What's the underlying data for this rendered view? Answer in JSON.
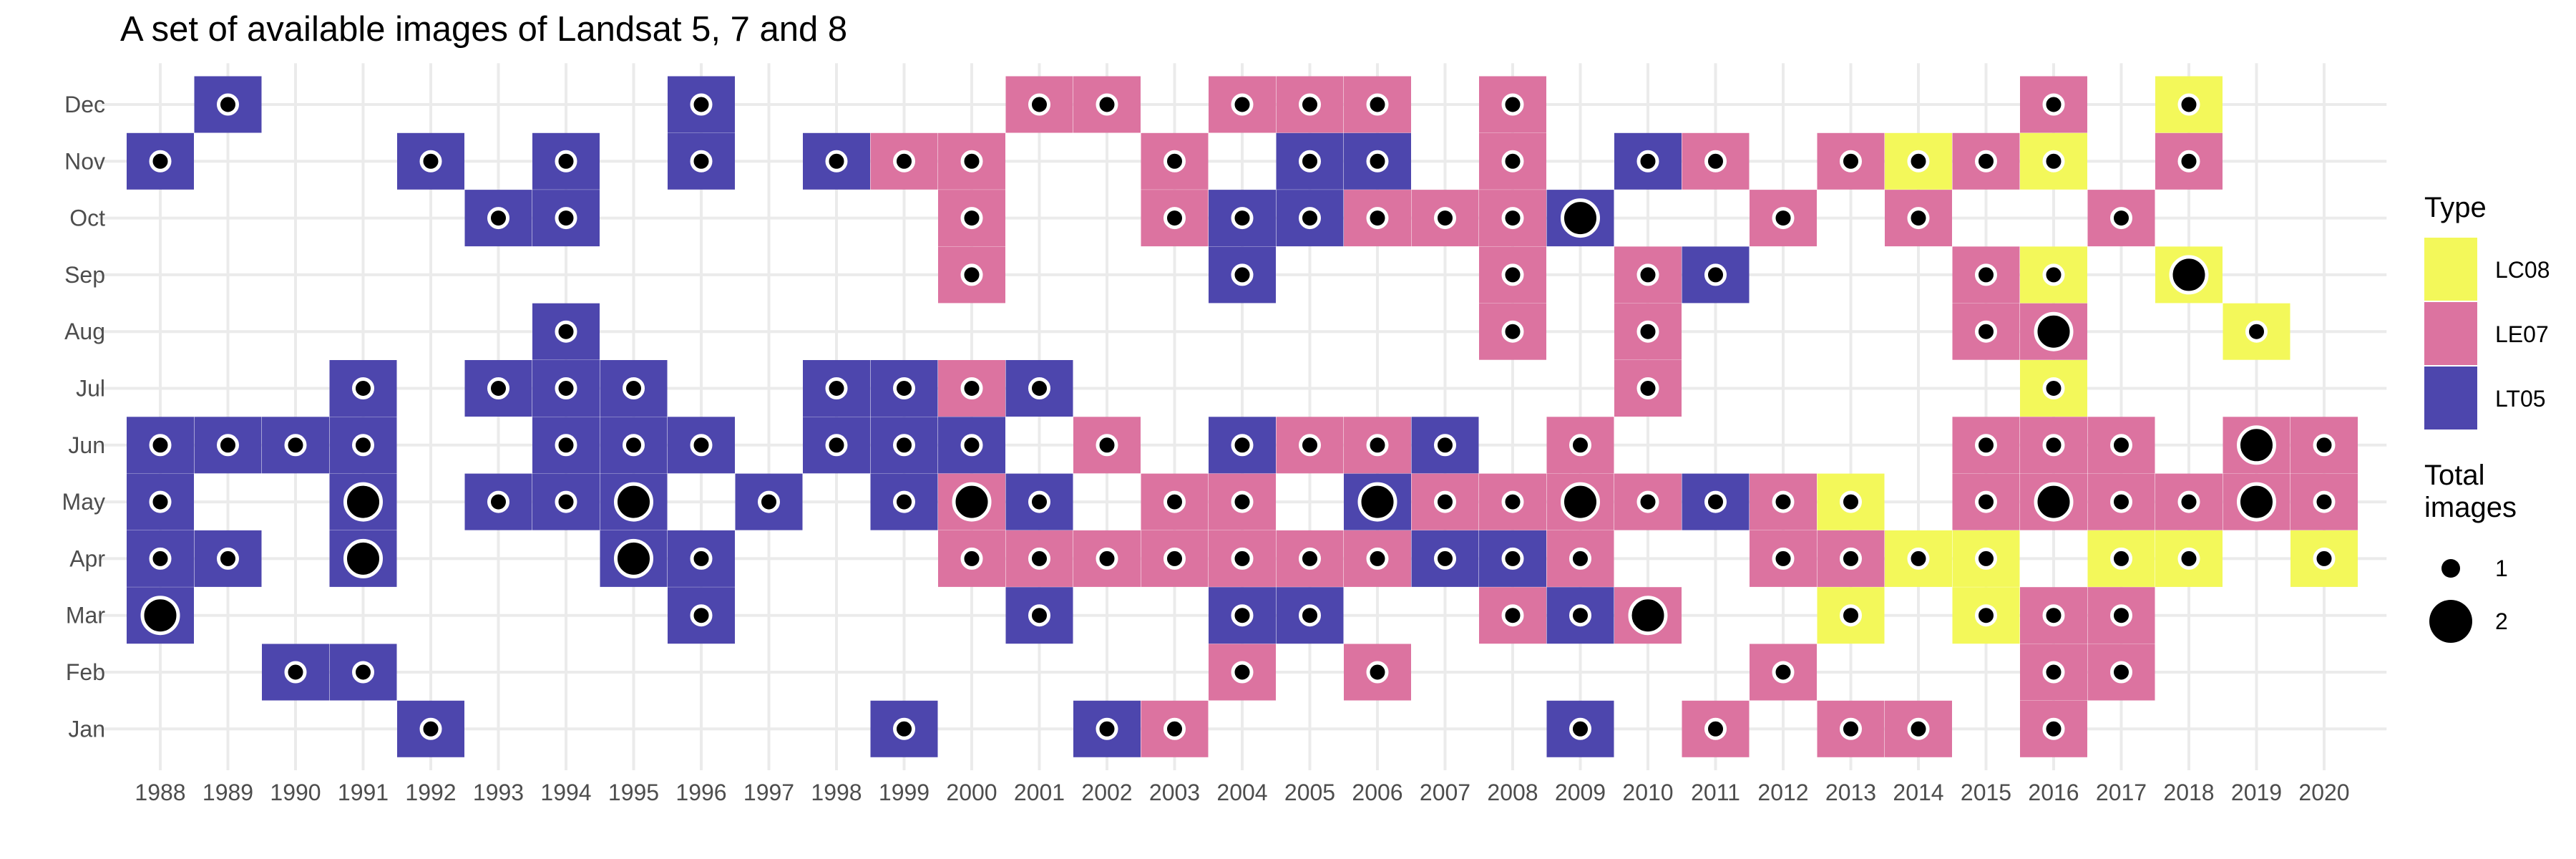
{
  "chart_data": {
    "type": "heatmap",
    "title": "A set of available images of Landsat 5, 7 and 8",
    "xlabel": "",
    "ylabel": "",
    "x_categories": [
      "1988",
      "1989",
      "1990",
      "1991",
      "1992",
      "1993",
      "1994",
      "1995",
      "1996",
      "1997",
      "1998",
      "1999",
      "2000",
      "2001",
      "2002",
      "2003",
      "2004",
      "2005",
      "2006",
      "2007",
      "2008",
      "2009",
      "2010",
      "2011",
      "2012",
      "2013",
      "2014",
      "2015",
      "2016",
      "2017",
      "2018",
      "2019",
      "2020"
    ],
    "y_categories": [
      "Jan",
      "Feb",
      "Mar",
      "Apr",
      "May",
      "Jun",
      "Jul",
      "Aug",
      "Sep",
      "Oct",
      "Nov",
      "Dec"
    ],
    "grid": true,
    "legend_placement": "right",
    "legend": {
      "fill_title": "Type",
      "fill_entries": [
        {
          "name": "LC08",
          "color": "#f3f85a"
        },
        {
          "name": "LE07",
          "color": "#dc73a0"
        },
        {
          "name": "LT05",
          "color": "#4d46ad"
        }
      ],
      "size_title_line1": "Total",
      "size_title_line2": "images",
      "size_entries": [
        {
          "label": "1",
          "value": 1
        },
        {
          "label": "2",
          "value": 2
        }
      ]
    },
    "colors": {
      "LC08": "#f3f85a",
      "LE07": "#dc73a0",
      "LT05": "#4d46ad"
    },
    "cells": [
      {
        "year": "1988",
        "month": "Nov",
        "type": "LT05",
        "total": 1
      },
      {
        "year": "1988",
        "month": "Jun",
        "type": "LT05",
        "total": 1
      },
      {
        "year": "1988",
        "month": "May",
        "type": "LT05",
        "total": 1
      },
      {
        "year": "1988",
        "month": "Apr",
        "type": "LT05",
        "total": 1
      },
      {
        "year": "1988",
        "month": "Mar",
        "type": "LT05",
        "total": 2
      },
      {
        "year": "1989",
        "month": "Dec",
        "type": "LT05",
        "total": 1
      },
      {
        "year": "1989",
        "month": "Jun",
        "type": "LT05",
        "total": 1
      },
      {
        "year": "1989",
        "month": "Apr",
        "type": "LT05",
        "total": 1
      },
      {
        "year": "1990",
        "month": "Jun",
        "type": "LT05",
        "total": 1
      },
      {
        "year": "1990",
        "month": "Feb",
        "type": "LT05",
        "total": 1
      },
      {
        "year": "1991",
        "month": "Jul",
        "type": "LT05",
        "total": 1
      },
      {
        "year": "1991",
        "month": "Jun",
        "type": "LT05",
        "total": 1
      },
      {
        "year": "1991",
        "month": "May",
        "type": "LT05",
        "total": 2
      },
      {
        "year": "1991",
        "month": "Apr",
        "type": "LT05",
        "total": 2
      },
      {
        "year": "1991",
        "month": "Feb",
        "type": "LT05",
        "total": 1
      },
      {
        "year": "1992",
        "month": "Nov",
        "type": "LT05",
        "total": 1
      },
      {
        "year": "1992",
        "month": "Jan",
        "type": "LT05",
        "total": 1
      },
      {
        "year": "1993",
        "month": "Oct",
        "type": "LT05",
        "total": 1
      },
      {
        "year": "1993",
        "month": "Jul",
        "type": "LT05",
        "total": 1
      },
      {
        "year": "1993",
        "month": "May",
        "type": "LT05",
        "total": 1
      },
      {
        "year": "1994",
        "month": "Nov",
        "type": "LT05",
        "total": 1
      },
      {
        "year": "1994",
        "month": "Oct",
        "type": "LT05",
        "total": 1
      },
      {
        "year": "1994",
        "month": "Aug",
        "type": "LT05",
        "total": 1
      },
      {
        "year": "1994",
        "month": "Jul",
        "type": "LT05",
        "total": 1
      },
      {
        "year": "1994",
        "month": "Jun",
        "type": "LT05",
        "total": 1
      },
      {
        "year": "1994",
        "month": "May",
        "type": "LT05",
        "total": 1
      },
      {
        "year": "1995",
        "month": "Jul",
        "type": "LT05",
        "total": 1
      },
      {
        "year": "1995",
        "month": "Jun",
        "type": "LT05",
        "total": 1
      },
      {
        "year": "1995",
        "month": "May",
        "type": "LT05",
        "total": 2
      },
      {
        "year": "1995",
        "month": "Apr",
        "type": "LT05",
        "total": 2
      },
      {
        "year": "1996",
        "month": "Dec",
        "type": "LT05",
        "total": 1
      },
      {
        "year": "1996",
        "month": "Nov",
        "type": "LT05",
        "total": 1
      },
      {
        "year": "1996",
        "month": "Jun",
        "type": "LT05",
        "total": 1
      },
      {
        "year": "1996",
        "month": "Apr",
        "type": "LT05",
        "total": 1
      },
      {
        "year": "1996",
        "month": "Mar",
        "type": "LT05",
        "total": 1
      },
      {
        "year": "1997",
        "month": "May",
        "type": "LT05",
        "total": 1
      },
      {
        "year": "1998",
        "month": "Nov",
        "type": "LT05",
        "total": 1
      },
      {
        "year": "1998",
        "month": "Jul",
        "type": "LT05",
        "total": 1
      },
      {
        "year": "1998",
        "month": "Jun",
        "type": "LT05",
        "total": 1
      },
      {
        "year": "1999",
        "month": "Nov",
        "type": "LE07",
        "total": 1
      },
      {
        "year": "1999",
        "month": "Jul",
        "type": "LT05",
        "total": 1
      },
      {
        "year": "1999",
        "month": "Jun",
        "type": "LT05",
        "total": 1
      },
      {
        "year": "1999",
        "month": "May",
        "type": "LT05",
        "total": 1
      },
      {
        "year": "1999",
        "month": "Jan",
        "type": "LT05",
        "total": 1
      },
      {
        "year": "2000",
        "month": "Nov",
        "type": "LE07",
        "total": 1
      },
      {
        "year": "2000",
        "month": "Oct",
        "type": "LE07",
        "total": 1
      },
      {
        "year": "2000",
        "month": "Sep",
        "type": "LE07",
        "total": 1
      },
      {
        "year": "2000",
        "month": "Jul",
        "type": "LE07",
        "total": 1
      },
      {
        "year": "2000",
        "month": "Jun",
        "type": "LT05",
        "total": 1
      },
      {
        "year": "2000",
        "month": "May",
        "type": "LE07",
        "total": 2
      },
      {
        "year": "2000",
        "month": "Apr",
        "type": "LE07",
        "total": 1
      },
      {
        "year": "2001",
        "month": "Dec",
        "type": "LE07",
        "total": 1
      },
      {
        "year": "2001",
        "month": "Jul",
        "type": "LT05",
        "total": 1
      },
      {
        "year": "2001",
        "month": "May",
        "type": "LT05",
        "total": 1
      },
      {
        "year": "2001",
        "month": "Apr",
        "type": "LE07",
        "total": 1
      },
      {
        "year": "2001",
        "month": "Mar",
        "type": "LT05",
        "total": 1
      },
      {
        "year": "2002",
        "month": "Dec",
        "type": "LE07",
        "total": 1
      },
      {
        "year": "2002",
        "month": "Jun",
        "type": "LE07",
        "total": 1
      },
      {
        "year": "2002",
        "month": "Apr",
        "type": "LE07",
        "total": 1
      },
      {
        "year": "2002",
        "month": "Jan",
        "type": "LT05",
        "total": 1
      },
      {
        "year": "2003",
        "month": "Nov",
        "type": "LE07",
        "total": 1
      },
      {
        "year": "2003",
        "month": "Oct",
        "type": "LE07",
        "total": 1
      },
      {
        "year": "2003",
        "month": "May",
        "type": "LE07",
        "total": 1
      },
      {
        "year": "2003",
        "month": "Apr",
        "type": "LE07",
        "total": 1
      },
      {
        "year": "2003",
        "month": "Jan",
        "type": "LE07",
        "total": 1
      },
      {
        "year": "2004",
        "month": "Dec",
        "type": "LE07",
        "total": 1
      },
      {
        "year": "2004",
        "month": "Oct",
        "type": "LT05",
        "total": 1
      },
      {
        "year": "2004",
        "month": "Sep",
        "type": "LT05",
        "total": 1
      },
      {
        "year": "2004",
        "month": "Jun",
        "type": "LT05",
        "total": 1
      },
      {
        "year": "2004",
        "month": "May",
        "type": "LE07",
        "total": 1
      },
      {
        "year": "2004",
        "month": "Apr",
        "type": "LE07",
        "total": 1
      },
      {
        "year": "2004",
        "month": "Mar",
        "type": "LT05",
        "total": 1
      },
      {
        "year": "2004",
        "month": "Feb",
        "type": "LE07",
        "total": 1
      },
      {
        "year": "2005",
        "month": "Dec",
        "type": "LE07",
        "total": 1
      },
      {
        "year": "2005",
        "month": "Nov",
        "type": "LT05",
        "total": 1
      },
      {
        "year": "2005",
        "month": "Oct",
        "type": "LT05",
        "total": 1
      },
      {
        "year": "2005",
        "month": "Jun",
        "type": "LE07",
        "total": 1
      },
      {
        "year": "2005",
        "month": "Apr",
        "type": "LE07",
        "total": 1
      },
      {
        "year": "2005",
        "month": "Mar",
        "type": "LT05",
        "total": 1
      },
      {
        "year": "2006",
        "month": "Dec",
        "type": "LE07",
        "total": 1
      },
      {
        "year": "2006",
        "month": "Nov",
        "type": "LT05",
        "total": 1
      },
      {
        "year": "2006",
        "month": "Oct",
        "type": "LE07",
        "total": 1
      },
      {
        "year": "2006",
        "month": "Jun",
        "type": "LE07",
        "total": 1
      },
      {
        "year": "2006",
        "month": "May",
        "type": "LT05",
        "total": 2
      },
      {
        "year": "2006",
        "month": "Apr",
        "type": "LE07",
        "total": 1
      },
      {
        "year": "2006",
        "month": "Feb",
        "type": "LE07",
        "total": 1
      },
      {
        "year": "2007",
        "month": "Oct",
        "type": "LE07",
        "total": 1
      },
      {
        "year": "2007",
        "month": "Jun",
        "type": "LT05",
        "total": 1
      },
      {
        "year": "2007",
        "month": "May",
        "type": "LE07",
        "total": 1
      },
      {
        "year": "2007",
        "month": "Apr",
        "type": "LT05",
        "total": 1
      },
      {
        "year": "2008",
        "month": "Dec",
        "type": "LE07",
        "total": 1
      },
      {
        "year": "2008",
        "month": "Nov",
        "type": "LE07",
        "total": 1
      },
      {
        "year": "2008",
        "month": "Oct",
        "type": "LE07",
        "total": 1
      },
      {
        "year": "2008",
        "month": "Sep",
        "type": "LE07",
        "total": 1
      },
      {
        "year": "2008",
        "month": "Aug",
        "type": "LE07",
        "total": 1
      },
      {
        "year": "2008",
        "month": "May",
        "type": "LE07",
        "total": 1
      },
      {
        "year": "2008",
        "month": "Apr",
        "type": "LT05",
        "total": 1
      },
      {
        "year": "2008",
        "month": "Mar",
        "type": "LE07",
        "total": 1
      },
      {
        "year": "2009",
        "month": "Oct",
        "type": "LT05",
        "total": 2
      },
      {
        "year": "2009",
        "month": "Jun",
        "type": "LE07",
        "total": 1
      },
      {
        "year": "2009",
        "month": "May",
        "type": "LE07",
        "total": 2
      },
      {
        "year": "2009",
        "month": "Apr",
        "type": "LE07",
        "total": 1
      },
      {
        "year": "2009",
        "month": "Mar",
        "type": "LT05",
        "total": 1
      },
      {
        "year": "2009",
        "month": "Jan",
        "type": "LT05",
        "total": 1
      },
      {
        "year": "2010",
        "month": "Nov",
        "type": "LT05",
        "total": 1
      },
      {
        "year": "2010",
        "month": "Sep",
        "type": "LE07",
        "total": 1
      },
      {
        "year": "2010",
        "month": "Aug",
        "type": "LE07",
        "total": 1
      },
      {
        "year": "2010",
        "month": "Jul",
        "type": "LE07",
        "total": 1
      },
      {
        "year": "2010",
        "month": "May",
        "type": "LE07",
        "total": 1
      },
      {
        "year": "2010",
        "month": "Mar",
        "type": "LE07",
        "total": 2
      },
      {
        "year": "2011",
        "month": "Nov",
        "type": "LE07",
        "total": 1
      },
      {
        "year": "2011",
        "month": "Sep",
        "type": "LT05",
        "total": 1
      },
      {
        "year": "2011",
        "month": "May",
        "type": "LT05",
        "total": 1
      },
      {
        "year": "2011",
        "month": "Jan",
        "type": "LE07",
        "total": 1
      },
      {
        "year": "2012",
        "month": "Oct",
        "type": "LE07",
        "total": 1
      },
      {
        "year": "2012",
        "month": "May",
        "type": "LE07",
        "total": 1
      },
      {
        "year": "2012",
        "month": "Apr",
        "type": "LE07",
        "total": 1
      },
      {
        "year": "2012",
        "month": "Feb",
        "type": "LE07",
        "total": 1
      },
      {
        "year": "2013",
        "month": "Nov",
        "type": "LE07",
        "total": 1
      },
      {
        "year": "2013",
        "month": "May",
        "type": "LC08",
        "total": 1
      },
      {
        "year": "2013",
        "month": "Apr",
        "type": "LE07",
        "total": 1
      },
      {
        "year": "2013",
        "month": "Mar",
        "type": "LC08",
        "total": 1
      },
      {
        "year": "2013",
        "month": "Jan",
        "type": "LE07",
        "total": 1
      },
      {
        "year": "2014",
        "month": "Nov",
        "type": "LC08",
        "total": 1
      },
      {
        "year": "2014",
        "month": "Oct",
        "type": "LE07",
        "total": 1
      },
      {
        "year": "2014",
        "month": "Apr",
        "type": "LC08",
        "total": 1
      },
      {
        "year": "2014",
        "month": "Jan",
        "type": "LE07",
        "total": 1
      },
      {
        "year": "2015",
        "month": "Nov",
        "type": "LE07",
        "total": 1
      },
      {
        "year": "2015",
        "month": "Sep",
        "type": "LE07",
        "total": 1
      },
      {
        "year": "2015",
        "month": "Aug",
        "type": "LE07",
        "total": 1
      },
      {
        "year": "2015",
        "month": "Jun",
        "type": "LE07",
        "total": 1
      },
      {
        "year": "2015",
        "month": "May",
        "type": "LE07",
        "total": 1
      },
      {
        "year": "2015",
        "month": "Apr",
        "type": "LC08",
        "total": 1
      },
      {
        "year": "2015",
        "month": "Mar",
        "type": "LC08",
        "total": 1
      },
      {
        "year": "2016",
        "month": "Dec",
        "type": "LE07",
        "total": 1
      },
      {
        "year": "2016",
        "month": "Nov",
        "type": "LC08",
        "total": 1
      },
      {
        "year": "2016",
        "month": "Sep",
        "type": "LC08",
        "total": 1
      },
      {
        "year": "2016",
        "month": "Aug",
        "type": "LE07",
        "total": 2
      },
      {
        "year": "2016",
        "month": "Jul",
        "type": "LC08",
        "total": 1
      },
      {
        "year": "2016",
        "month": "Jun",
        "type": "LE07",
        "total": 1
      },
      {
        "year": "2016",
        "month": "May",
        "type": "LE07",
        "total": 2
      },
      {
        "year": "2016",
        "month": "Mar",
        "type": "LE07",
        "total": 1
      },
      {
        "year": "2016",
        "month": "Feb",
        "type": "LE07",
        "total": 1
      },
      {
        "year": "2016",
        "month": "Jan",
        "type": "LE07",
        "total": 1
      },
      {
        "year": "2017",
        "month": "Oct",
        "type": "LE07",
        "total": 1
      },
      {
        "year": "2017",
        "month": "Jun",
        "type": "LE07",
        "total": 1
      },
      {
        "year": "2017",
        "month": "May",
        "type": "LE07",
        "total": 1
      },
      {
        "year": "2017",
        "month": "Apr",
        "type": "LC08",
        "total": 1
      },
      {
        "year": "2017",
        "month": "Mar",
        "type": "LE07",
        "total": 1
      },
      {
        "year": "2017",
        "month": "Feb",
        "type": "LE07",
        "total": 1
      },
      {
        "year": "2018",
        "month": "Dec",
        "type": "LC08",
        "total": 1
      },
      {
        "year": "2018",
        "month": "Nov",
        "type": "LE07",
        "total": 1
      },
      {
        "year": "2018",
        "month": "Sep",
        "type": "LC08",
        "total": 2
      },
      {
        "year": "2018",
        "month": "May",
        "type": "LE07",
        "total": 1
      },
      {
        "year": "2018",
        "month": "Apr",
        "type": "LC08",
        "total": 1
      },
      {
        "year": "2019",
        "month": "Aug",
        "type": "LC08",
        "total": 1
      },
      {
        "year": "2019",
        "month": "Jun",
        "type": "LE07",
        "total": 2
      },
      {
        "year": "2019",
        "month": "May",
        "type": "LE07",
        "total": 2
      },
      {
        "year": "2020",
        "month": "Jun",
        "type": "LE07",
        "total": 1
      },
      {
        "year": "2020",
        "month": "May",
        "type": "LE07",
        "total": 1
      },
      {
        "year": "2020",
        "month": "Apr",
        "type": "LC08",
        "total": 1
      }
    ]
  }
}
